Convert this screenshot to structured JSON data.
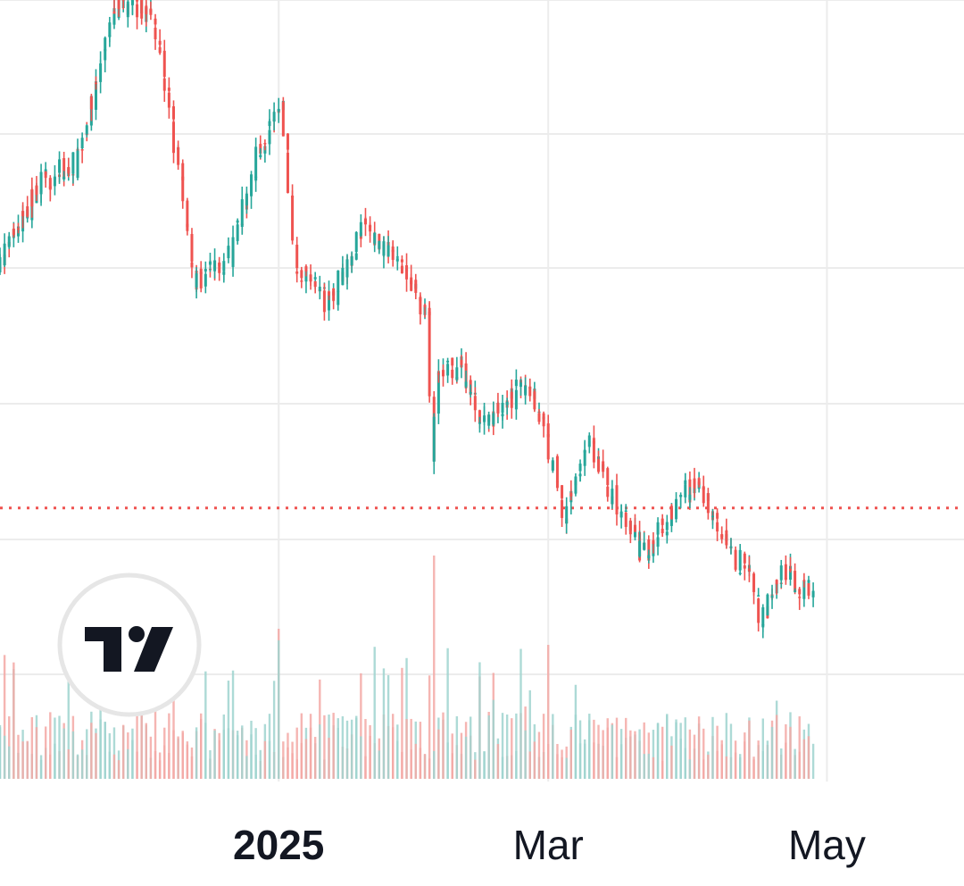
{
  "chart_data": {
    "type": "candlestick",
    "title": "",
    "xlabel": "",
    "ylabel": "",
    "x_tick_labels": [
      {
        "label": "2025",
        "date": "2025-01-01",
        "bold": true
      },
      {
        "label": "Mar",
        "date": "2025-03-01",
        "bold": false
      },
      {
        "label": "May",
        "date": "2025-05-01",
        "bold": false
      }
    ],
    "x_range": [
      "2024-11-01",
      "2025-05-31"
    ],
    "y_range": [
      0,
      100
    ],
    "grid": true,
    "y_axis_labels_visible": false,
    "current_price_line": 28,
    "watermark": "TV",
    "colors": {
      "up": "#26a69a",
      "down": "#ef5350",
      "volume_up": "#9fd3cf",
      "volume_down": "#f3a8a5",
      "grid": "#ececec",
      "price_line": "#ef5350",
      "text": "#131722"
    },
    "price_path": [
      {
        "date": "2024-11-01",
        "value": 62
      },
      {
        "date": "2024-11-10",
        "value": 74
      },
      {
        "date": "2024-11-18",
        "value": 77
      },
      {
        "date": "2024-11-27",
        "value": 100
      },
      {
        "date": "2024-12-05",
        "value": 98
      },
      {
        "date": "2024-12-10",
        "value": 78
      },
      {
        "date": "2024-12-14",
        "value": 60
      },
      {
        "date": "2024-12-22",
        "value": 64
      },
      {
        "date": "2024-12-28",
        "value": 79
      },
      {
        "date": "2025-01-02",
        "value": 85
      },
      {
        "date": "2025-01-05",
        "value": 63
      },
      {
        "date": "2025-01-12",
        "value": 57
      },
      {
        "date": "2025-01-20",
        "value": 68
      },
      {
        "date": "2025-01-28",
        "value": 62
      },
      {
        "date": "2025-02-03",
        "value": 55
      },
      {
        "date": "2025-02-04",
        "value": 33
      },
      {
        "date": "2025-02-05",
        "value": 47
      },
      {
        "date": "2025-02-10",
        "value": 48
      },
      {
        "date": "2025-02-15",
        "value": 40
      },
      {
        "date": "2025-02-25",
        "value": 46
      },
      {
        "date": "2025-02-28",
        "value": 40
      },
      {
        "date": "2025-03-05",
        "value": 27
      },
      {
        "date": "2025-03-10",
        "value": 38
      },
      {
        "date": "2025-03-15",
        "value": 30
      },
      {
        "date": "2025-03-22",
        "value": 21
      },
      {
        "date": "2025-03-25",
        "value": 24
      },
      {
        "date": "2025-03-30",
        "value": 30
      },
      {
        "date": "2025-04-03",
        "value": 31
      },
      {
        "date": "2025-04-07",
        "value": 27
      },
      {
        "date": "2025-04-10",
        "value": 21
      },
      {
        "date": "2025-04-14",
        "value": 20
      },
      {
        "date": "2025-04-17",
        "value": 12
      },
      {
        "date": "2025-04-22",
        "value": 19
      },
      {
        "date": "2025-04-25",
        "value": 17
      },
      {
        "date": "2025-04-28",
        "value": 17
      }
    ],
    "volume_spikes": [
      {
        "date": "2025-02-04",
        "value": 100
      },
      {
        "date": "2025-03-01",
        "value": 60
      },
      {
        "date": "2025-02-16",
        "value": 30
      },
      {
        "date": "2025-04-20",
        "value": 35
      }
    ]
  }
}
